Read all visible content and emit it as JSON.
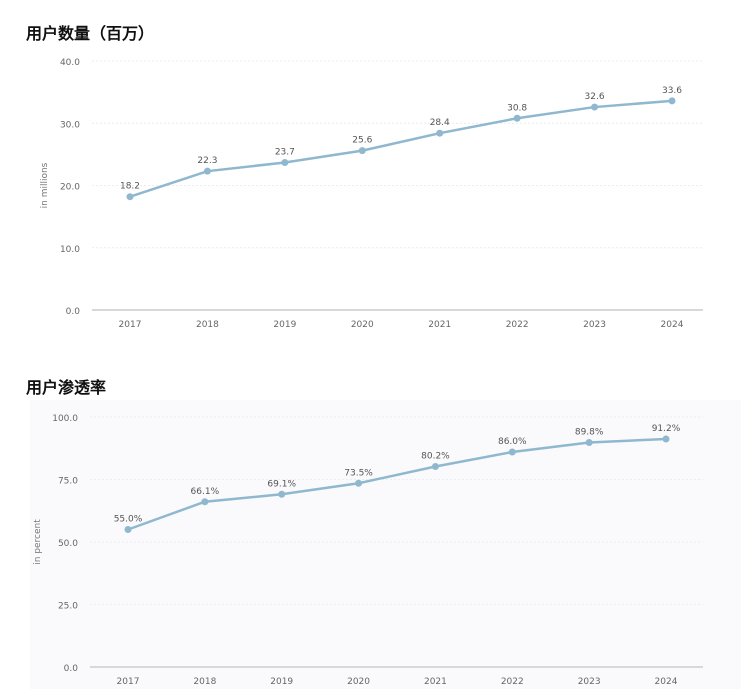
{
  "chart_data": [
    {
      "type": "line",
      "title": "用户数量（百万）",
      "ylabel": "in millions",
      "xlabel": "",
      "categories": [
        "2017",
        "2018",
        "2019",
        "2020",
        "2021",
        "2022",
        "2023",
        "2024"
      ],
      "values": [
        18.2,
        22.3,
        23.7,
        25.6,
        28.4,
        30.8,
        32.6,
        33.6
      ],
      "data_labels": [
        "18.2",
        "22.3",
        "23.7",
        "25.6",
        "28.4",
        "30.8",
        "32.6",
        "33.6"
      ],
      "ylim": [
        0,
        40
      ],
      "yticks": [
        "0.0",
        "10.0",
        "20.0",
        "30.0",
        "40.0"
      ],
      "grid": true,
      "color": "#8fb8cf"
    },
    {
      "type": "line",
      "title": "用户渗透率",
      "ylabel": "in percent",
      "xlabel": "",
      "categories": [
        "2017",
        "2018",
        "2019",
        "2020",
        "2021",
        "2022",
        "2023",
        "2024"
      ],
      "values": [
        55.0,
        66.1,
        69.1,
        73.5,
        80.2,
        86.0,
        89.8,
        91.2
      ],
      "data_labels": [
        "55.0%",
        "66.1%",
        "69.1%",
        "73.5%",
        "80.2%",
        "86.0%",
        "89.8%",
        "91.2%"
      ],
      "ylim": [
        0,
        100
      ],
      "yticks": [
        "0.0",
        "25.0",
        "50.0",
        "75.0",
        "100.0"
      ],
      "grid": true,
      "color": "#8fb8cf"
    }
  ]
}
